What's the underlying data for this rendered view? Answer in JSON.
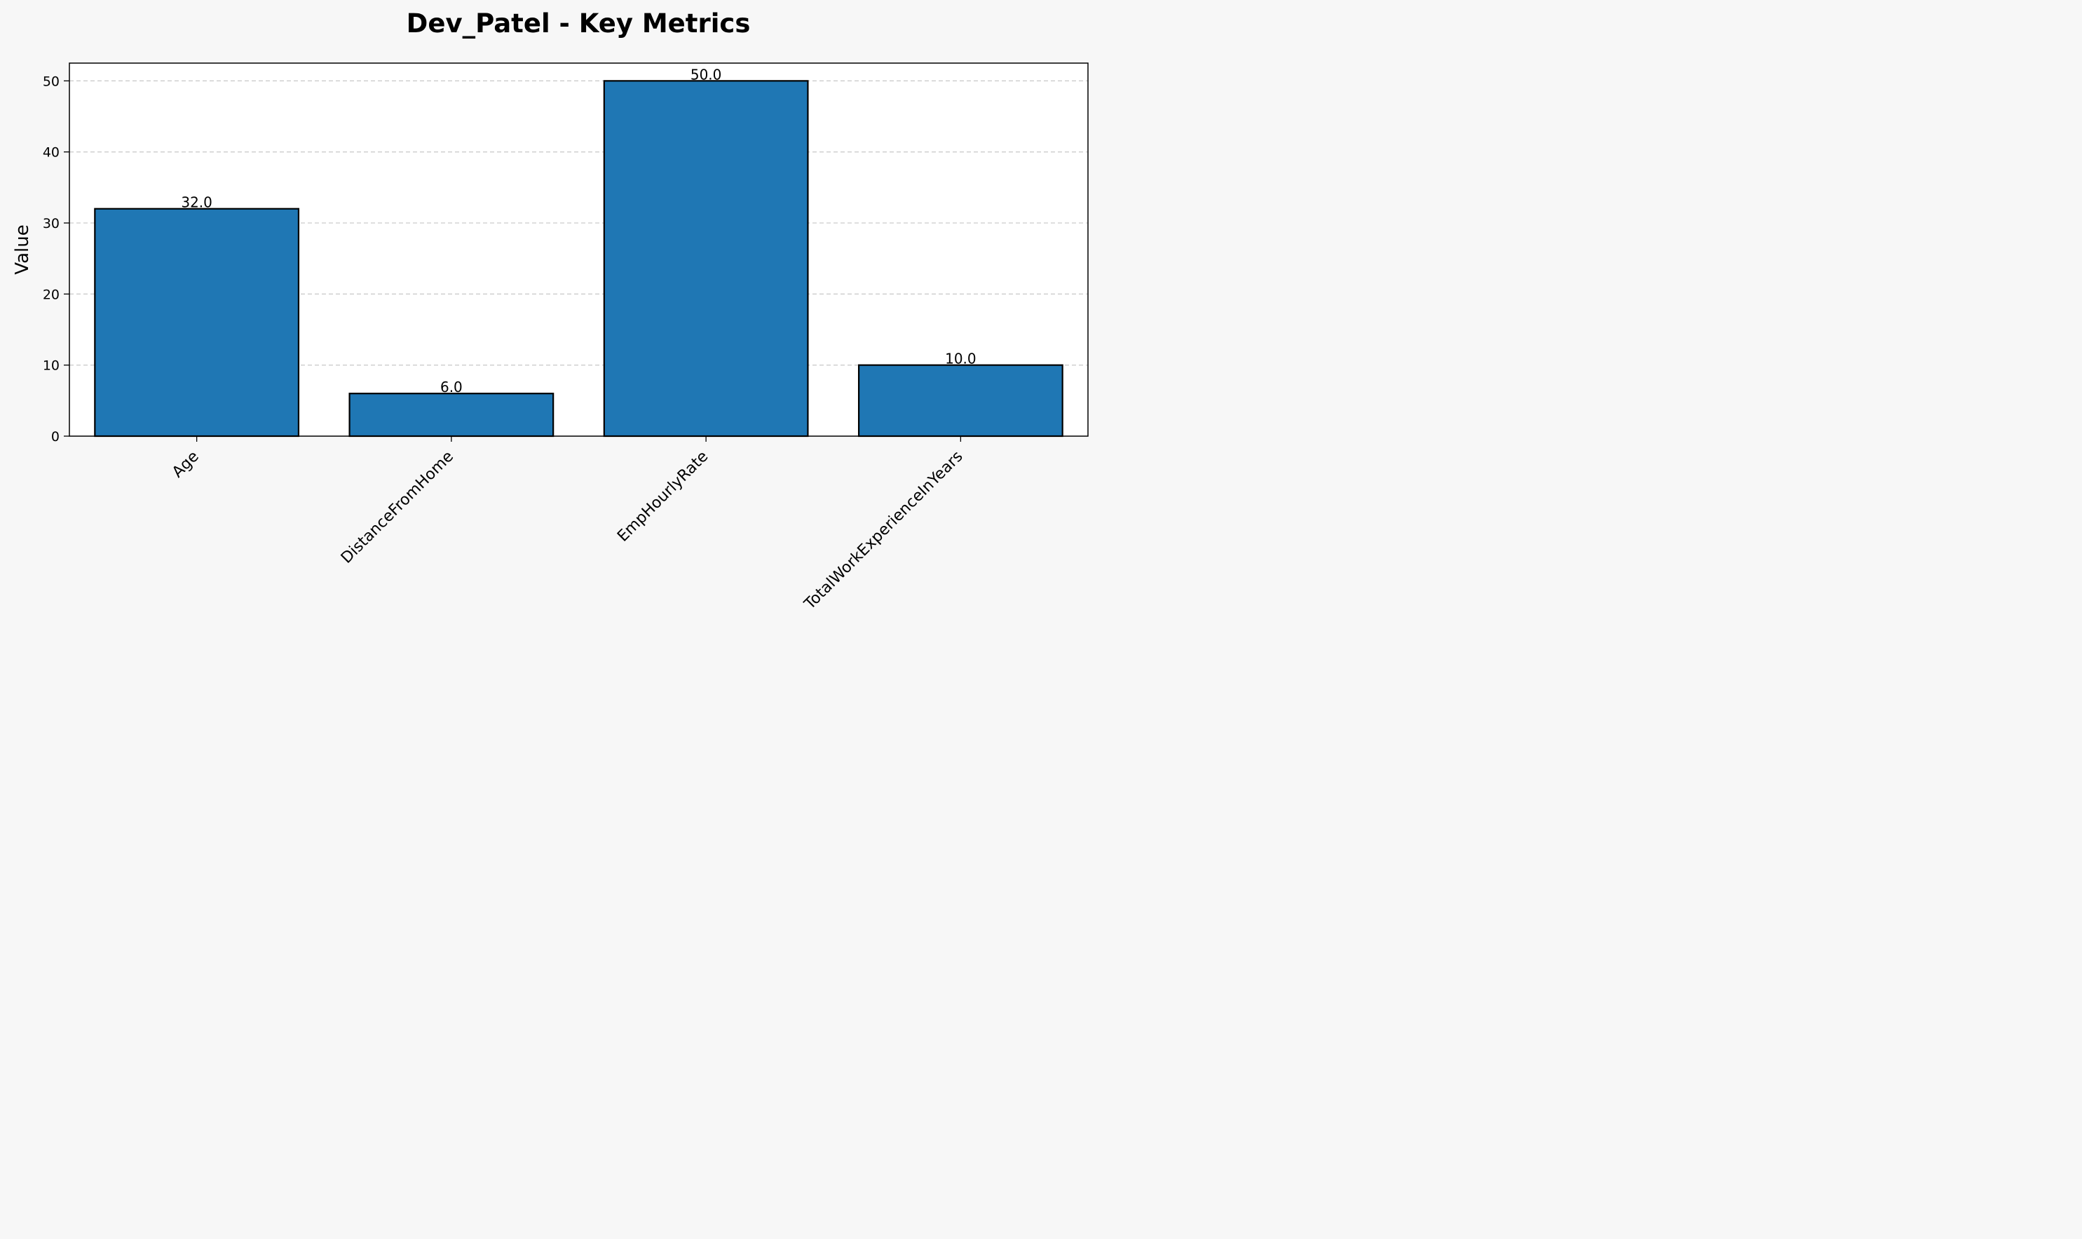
{
  "chart_data": {
    "type": "bar",
    "title": "Dev_Patel - Key Metrics",
    "xlabel": "",
    "ylabel": "Value",
    "categories": [
      "Age",
      "DistanceFromHome",
      "EmpHourlyRate",
      "TotalWorkExperienceInYears"
    ],
    "values": [
      32,
      6,
      50,
      10
    ],
    "data_labels": [
      "32.0",
      "6.0",
      "50.0",
      "10.0"
    ],
    "ylim": [
      0,
      52.5
    ],
    "yticks": [
      0,
      10,
      20,
      30,
      40,
      50
    ],
    "ytick_labels": [
      "0",
      "10",
      "20",
      "30",
      "40",
      "50"
    ],
    "grid": "y-dashed",
    "bar_color": "#1f77b4",
    "bar_edge_color": "#000000",
    "background_color": "#f7f7f7",
    "plot_background_color": "#ffffff"
  }
}
